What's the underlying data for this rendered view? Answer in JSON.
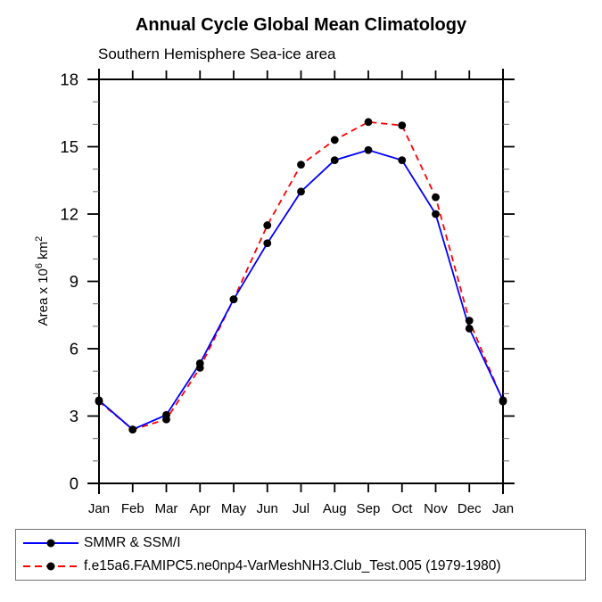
{
  "chart_data": {
    "type": "line",
    "title": "Annual Cycle Global Mean Climatology",
    "subtitle": "Southern Hemisphere Sea-ice area",
    "ylabel": "Area x 10⁶ km²",
    "ylabel_parts": {
      "base": "Area x 10",
      "sup": "6",
      "unit": " km",
      "unit_sup": "2"
    },
    "xlabel": "",
    "categories": [
      "Jan",
      "Feb",
      "Mar",
      "Apr",
      "May",
      "Jun",
      "Jul",
      "Aug",
      "Sep",
      "Oct",
      "Nov",
      "Dec",
      "Jan"
    ],
    "ylim": [
      0,
      18
    ],
    "ytick_major": [
      0,
      3,
      6,
      9,
      12,
      15,
      18
    ],
    "ytick_minor_step": 1,
    "grid": false,
    "legend_position": "bottom-left-box",
    "series": [
      {
        "name": "SMMR & SSM/I",
        "color": "#0000ff",
        "dash": "solid",
        "marker": "black-dot",
        "values": [
          3.7,
          2.4,
          3.05,
          5.35,
          8.2,
          10.7,
          13.0,
          14.4,
          14.85,
          14.4,
          12.0,
          6.9,
          3.7
        ]
      },
      {
        "name": "f.e15a6.FAMIPC5.ne0np4-VarMeshNH3.Club_Test.005 (1979-1980)",
        "color": "#ff0000",
        "dash": "dashed",
        "marker": "black-dot",
        "values": [
          3.65,
          2.4,
          2.85,
          5.15,
          8.2,
          11.5,
          14.2,
          15.3,
          16.1,
          15.95,
          12.75,
          7.25,
          3.65
        ]
      }
    ]
  }
}
